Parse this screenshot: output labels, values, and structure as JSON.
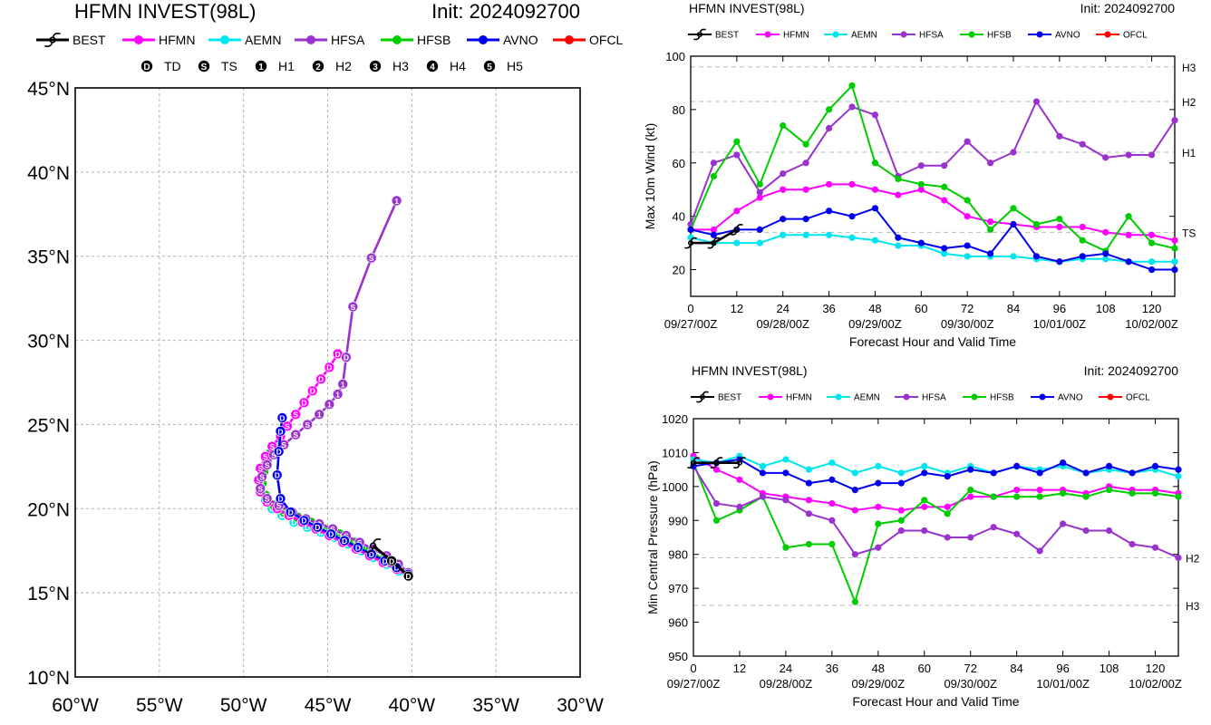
{
  "colors": {
    "BEST": "#000000",
    "HFMN": "#ff00ff",
    "AEMN": "#00e5ee",
    "HFSA": "#9a32cd",
    "HFSB": "#00cd00",
    "AVNO": "#0000ee",
    "OFCL": "#ff0000"
  },
  "legend_models": [
    "BEST",
    "HFMN",
    "AEMN",
    "HFSA",
    "HFSB",
    "AVNO",
    "OFCL"
  ],
  "intensity_legend": [
    {
      "symbol": "D",
      "label": "TD"
    },
    {
      "symbol": "S",
      "label": "TS"
    },
    {
      "symbol": "1",
      "label": "H1"
    },
    {
      "symbol": "2",
      "label": "H2"
    },
    {
      "symbol": "3",
      "label": "H3"
    },
    {
      "symbol": "4",
      "label": "H4"
    },
    {
      "symbol": "5",
      "label": "H5"
    }
  ],
  "chart_data": [
    {
      "type": "scatter",
      "subtype": "track-map",
      "title": "HFMN INVEST(98L)",
      "init": "Init: 2024092700",
      "xlim": [
        -60,
        -30
      ],
      "ylim": [
        10,
        45
      ],
      "x_ticks": [
        -60,
        -55,
        -50,
        -45,
        -40,
        -35,
        -30
      ],
      "x_tick_labels": [
        "60°W",
        "55°W",
        "50°W",
        "45°W",
        "40°W",
        "35°W",
        "30°W"
      ],
      "y_ticks": [
        10,
        15,
        20,
        25,
        30,
        35,
        40,
        45
      ],
      "y_tick_labels": [
        "10°N",
        "15°N",
        "20°N",
        "25°N",
        "30°N",
        "35°N",
        "40°N",
        "45°N"
      ],
      "grid": true,
      "series": [
        {
          "name": "AEMN",
          "lon": [
            -40.2,
            -40.8,
            -41.5,
            -42.3,
            -43.0,
            -43.8,
            -44.6,
            -45.4,
            -46.2,
            -47.0,
            -47.7,
            -48.3,
            -48.7,
            -49.0,
            -48.9,
            -48.6,
            -48.3,
            -48.0
          ],
          "lat": [
            16.0,
            16.3,
            16.7,
            17.1,
            17.5,
            17.9,
            18.3,
            18.6,
            18.9,
            19.2,
            19.6,
            20.0,
            20.5,
            21.2,
            22.0,
            22.7,
            23.3,
            23.8
          ],
          "symbols": [
            "D",
            "D",
            "D",
            "D",
            "D",
            "D",
            "D",
            "D",
            "D",
            "D",
            "D",
            "D",
            "D",
            "D",
            "D",
            "D",
            "D",
            "D"
          ]
        },
        {
          "name": "HFSB",
          "lon": [
            -40.2,
            -40.9,
            -41.7,
            -42.5,
            -43.4,
            -44.3,
            -45.2,
            -46.0,
            -46.8,
            -47.6,
            -48.2,
            -48.7,
            -48.9,
            -48.8,
            -48.6,
            -48.4,
            -48.2,
            -48.0,
            -47.9
          ],
          "lat": [
            16.1,
            16.5,
            17.0,
            17.5,
            18.0,
            18.5,
            18.8,
            19.2,
            19.5,
            19.8,
            20.2,
            20.8,
            21.5,
            22.2,
            22.8,
            23.3,
            23.6,
            23.5,
            23.4
          ],
          "symbols": [
            "D",
            "S",
            "S",
            "S",
            "S",
            "S",
            "S",
            "S",
            "S",
            "S",
            "S",
            "S",
            "S",
            "S",
            "S",
            "S",
            "S",
            "S",
            "S"
          ]
        },
        {
          "name": "HFMN",
          "lon": [
            -40.2,
            -40.9,
            -41.7,
            -42.5,
            -43.3,
            -44.1,
            -44.9,
            -45.7,
            -46.5,
            -47.3,
            -48.0,
            -48.6,
            -49.0,
            -49.1,
            -49.0,
            -48.7,
            -48.3,
            -47.8,
            -47.4,
            -46.9,
            -46.4,
            -45.9,
            -45.4,
            -44.9,
            -44.4
          ],
          "lat": [
            16.0,
            16.4,
            16.8,
            17.2,
            17.6,
            18.0,
            18.4,
            18.8,
            19.2,
            19.6,
            20.0,
            20.4,
            21.0,
            21.7,
            22.4,
            23.1,
            23.7,
            24.3,
            24.9,
            25.6,
            26.3,
            27.0,
            27.7,
            28.4,
            29.2
          ],
          "symbols": [
            "D",
            "S",
            "S",
            "S",
            "S",
            "S",
            "S",
            "S",
            "S",
            "S",
            "S",
            "S",
            "S",
            "S",
            "S",
            "S",
            "S",
            "S",
            "S",
            "S",
            "D",
            "D",
            "D",
            "D",
            "D"
          ]
        },
        {
          "name": "HFSA",
          "lon": [
            -40.2,
            -40.8,
            -41.5,
            -42.3,
            -43.1,
            -43.9,
            -44.7,
            -45.5,
            -46.3,
            -47.1,
            -47.9,
            -48.6,
            -49.0,
            -48.9,
            -48.6,
            -48.2,
            -47.6,
            -46.9,
            -46.2,
            -45.5,
            -44.9,
            -44.4,
            -44.1,
            -43.9,
            -43.5,
            -42.4,
            -40.9
          ],
          "lat": [
            16.2,
            16.7,
            17.2,
            17.6,
            18.0,
            18.4,
            18.8,
            19.1,
            19.4,
            19.8,
            20.2,
            20.6,
            21.2,
            21.9,
            22.6,
            23.2,
            23.8,
            24.4,
            25.0,
            25.6,
            26.2,
            26.8,
            27.4,
            29.0,
            32.0,
            34.9,
            38.3
          ],
          "symbols": [
            "D",
            "S",
            "S",
            "S",
            "S",
            "S",
            "S",
            "S",
            "S",
            "S",
            "S",
            "S",
            "S",
            "S",
            "S",
            "S",
            "S",
            "S",
            "S",
            "1",
            "1",
            "1",
            "1",
            "D",
            "S",
            "S",
            "1"
          ]
        },
        {
          "name": "AVNO",
          "lon": [
            -40.2,
            -40.9,
            -41.6,
            -42.4,
            -43.2,
            -44.0,
            -44.8,
            -45.6,
            -46.4,
            -47.2,
            -47.8,
            -48.0,
            -47.9,
            -47.8,
            -47.7
          ],
          "lat": [
            16.1,
            16.5,
            16.9,
            17.3,
            17.7,
            18.1,
            18.5,
            18.9,
            19.3,
            19.8,
            20.6,
            22.0,
            23.4,
            24.6,
            25.4
          ],
          "symbols": [
            "D",
            "D",
            "D",
            "D",
            "D",
            "D",
            "D",
            "D",
            "D",
            "D",
            "D",
            "D",
            "D",
            "D",
            "D"
          ]
        },
        {
          "name": "BEST",
          "lon": [
            -40.2,
            -41.2,
            -42.3
          ],
          "lat": [
            16.0,
            16.9,
            17.8
          ],
          "symbols": [
            "D",
            "D",
            "S"
          ]
        }
      ]
    },
    {
      "type": "line",
      "title": "HFMN INVEST(98L)",
      "init": "Init: 2024092700",
      "xlabel": "Forecast Hour and Valid Time",
      "ylabel": "Max 10m Wind (kt)",
      "xlim": [
        0,
        126
      ],
      "ylim": [
        10,
        100
      ],
      "x_ticks": [
        0,
        12,
        24,
        36,
        48,
        60,
        72,
        84,
        96,
        108,
        120
      ],
      "y_ticks": [
        20,
        40,
        60,
        80,
        100
      ],
      "date_labels": [
        {
          "hour": 0,
          "label": "09/27/00Z"
        },
        {
          "hour": 24,
          "label": "09/28/00Z"
        },
        {
          "hour": 48,
          "label": "09/29/00Z"
        },
        {
          "hour": 72,
          "label": "09/30/00Z"
        },
        {
          "hour": 96,
          "label": "10/01/00Z"
        },
        {
          "hour": 120,
          "label": "10/02/00Z"
        }
      ],
      "ref_lines": [
        {
          "value": 34,
          "label": "TS"
        },
        {
          "value": 64,
          "label": "H1"
        },
        {
          "value": 83,
          "label": "H2"
        },
        {
          "value": 96,
          "label": "H3"
        }
      ],
      "x": [
        0,
        6,
        12,
        18,
        24,
        30,
        36,
        42,
        48,
        54,
        60,
        66,
        72,
        78,
        84,
        90,
        96,
        102,
        108,
        114,
        120,
        126
      ],
      "series": [
        {
          "name": "AEMN",
          "values": [
            32,
            30,
            30,
            30,
            33,
            33,
            33,
            32,
            31,
            29,
            29,
            26,
            25,
            25,
            25,
            24,
            23,
            24,
            24,
            23,
            23,
            23
          ]
        },
        {
          "name": "HFMN",
          "values": [
            35,
            35,
            42,
            47,
            50,
            50,
            52,
            52,
            50,
            48,
            50,
            46,
            40,
            38,
            37,
            36,
            36,
            36,
            34,
            33,
            33,
            31
          ]
        },
        {
          "name": "HFSA",
          "values": [
            37,
            60,
            63,
            49,
            56,
            60,
            73,
            81,
            78,
            55,
            59,
            59,
            68,
            60,
            64,
            83,
            70,
            67,
            62,
            63,
            63,
            76
          ]
        },
        {
          "name": "HFSB",
          "values": [
            35,
            55,
            68,
            52,
            74,
            67,
            80,
            89,
            60,
            54,
            52,
            51,
            46,
            35,
            43,
            37,
            39,
            31,
            27,
            40,
            30,
            28
          ]
        },
        {
          "name": "AVNO",
          "values": [
            35,
            33,
            35,
            35,
            39,
            39,
            42,
            40,
            43,
            32,
            30,
            28,
            29,
            26,
            37,
            25,
            23,
            25,
            26,
            23,
            20,
            20
          ]
        },
        {
          "name": "BEST",
          "x": [
            0,
            6,
            12
          ],
          "values": [
            30,
            30,
            35
          ]
        }
      ]
    },
    {
      "type": "line",
      "title": "HFMN INVEST(98L)",
      "init": "Init: 2024092700",
      "xlabel": "Forecast Hour and Valid Time",
      "ylabel": "Min Central Pressure (hPa)",
      "xlim": [
        0,
        126
      ],
      "ylim": [
        950,
        1020
      ],
      "x_ticks": [
        0,
        12,
        24,
        36,
        48,
        60,
        72,
        84,
        96,
        108,
        120
      ],
      "y_ticks": [
        950,
        960,
        970,
        980,
        990,
        1000,
        1010,
        1020
      ],
      "date_labels": [
        {
          "hour": 0,
          "label": "09/27/00Z"
        },
        {
          "hour": 24,
          "label": "09/28/00Z"
        },
        {
          "hour": 48,
          "label": "09/29/00Z"
        },
        {
          "hour": 72,
          "label": "09/30/00Z"
        },
        {
          "hour": 96,
          "label": "10/01/00Z"
        },
        {
          "hour": 120,
          "label": "10/02/00Z"
        }
      ],
      "ref_lines": [
        {
          "value": 979,
          "label": "H2"
        },
        {
          "value": 965,
          "label": "H3"
        }
      ],
      "x": [
        0,
        6,
        12,
        18,
        24,
        30,
        36,
        42,
        48,
        54,
        60,
        66,
        72,
        78,
        84,
        90,
        96,
        102,
        108,
        114,
        120,
        126
      ],
      "series": [
        {
          "name": "AEMN",
          "values": [
            1008,
            1007,
            1009,
            1006,
            1008,
            1005,
            1007,
            1004,
            1006,
            1004,
            1006,
            1004,
            1006,
            1004,
            1006,
            1005,
            1006,
            1004,
            1005,
            1004,
            1005,
            1003
          ]
        },
        {
          "name": "AVNO",
          "values": [
            1006,
            1007,
            1008,
            1004,
            1004,
            1001,
            1002,
            999,
            1001,
            1001,
            1004,
            1003,
            1005,
            1004,
            1006,
            1004,
            1007,
            1004,
            1006,
            1004,
            1006,
            1005
          ]
        },
        {
          "name": "HFMN",
          "values": [
            1009,
            1005,
            1002,
            998,
            997,
            996,
            995,
            993,
            994,
            993,
            994,
            994,
            997,
            997,
            999,
            999,
            999,
            998,
            1000,
            999,
            999,
            998
          ]
        },
        {
          "name": "HFSB",
          "values": [
            1007,
            990,
            993,
            997,
            982,
            983,
            983,
            966,
            989,
            990,
            996,
            992,
            999,
            997,
            997,
            997,
            998,
            997,
            999,
            998,
            998,
            997
          ]
        },
        {
          "name": "HFSA",
          "values": [
            1006,
            995,
            994,
            997,
            996,
            992,
            990,
            980,
            982,
            987,
            987,
            985,
            985,
            988,
            986,
            981,
            989,
            987,
            987,
            983,
            982,
            979
          ]
        },
        {
          "name": "BEST",
          "x": [
            0,
            6,
            12
          ],
          "values": [
            1007,
            1007,
            1007
          ]
        }
      ]
    }
  ]
}
